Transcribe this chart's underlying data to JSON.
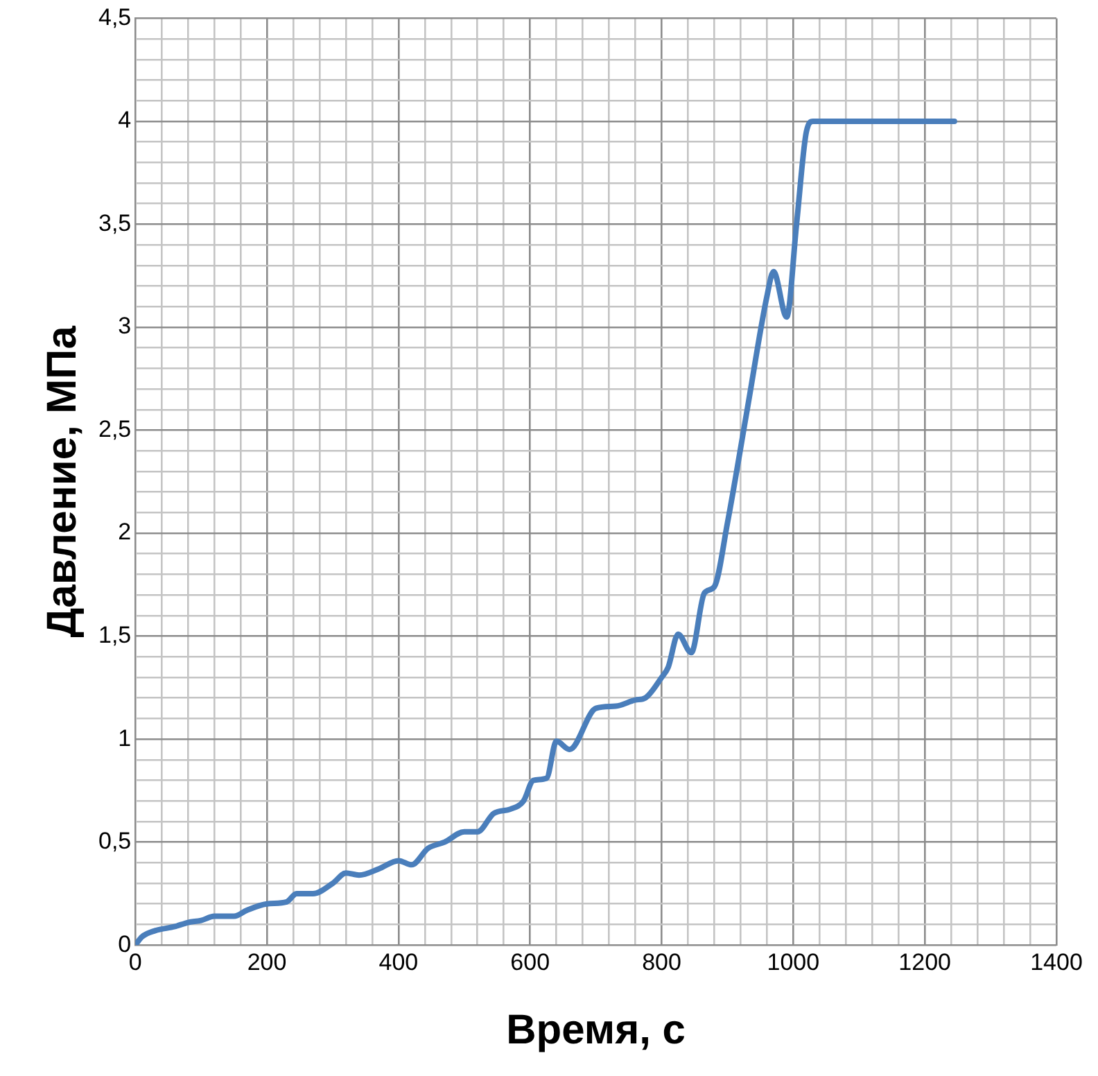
{
  "chart_data": {
    "type": "line",
    "xlabel": "Время, с",
    "ylabel": "Давление, МПа",
    "x": [
      0,
      10,
      30,
      60,
      80,
      100,
      120,
      150,
      170,
      200,
      230,
      245,
      270,
      300,
      320,
      340,
      370,
      400,
      420,
      445,
      470,
      500,
      520,
      545,
      570,
      590,
      605,
      625,
      640,
      660,
      700,
      730,
      760,
      775,
      800,
      810,
      825,
      845,
      865,
      880,
      900,
      930,
      960,
      970,
      990,
      1005,
      1020,
      1030,
      1245
    ],
    "series": [
      {
        "color": "#4a7ebb",
        "values": [
          0,
          0.04,
          0.07,
          0.09,
          0.11,
          0.12,
          0.14,
          0.14,
          0.17,
          0.2,
          0.21,
          0.25,
          0.25,
          0.3,
          0.35,
          0.34,
          0.37,
          0.41,
          0.39,
          0.47,
          0.5,
          0.55,
          0.55,
          0.64,
          0.66,
          0.7,
          0.8,
          0.81,
          0.99,
          0.95,
          1.15,
          1.16,
          1.19,
          1.2,
          1.3,
          1.35,
          1.51,
          1.42,
          1.71,
          1.74,
          2.05,
          2.6,
          3.15,
          3.27,
          3.05,
          3.5,
          3.95,
          4.0,
          4.0
        ]
      }
    ],
    "xlim": [
      0,
      1400
    ],
    "ylim": [
      0,
      4.5
    ],
    "xticks": [
      0,
      {
        "value": 40,
        "label": null
      },
      {
        "value": 80,
        "label": null
      },
      {
        "value": 120,
        "label": null
      },
      {
        "value": 160,
        "label": null
      },
      200,
      {
        "value": 240,
        "label": null
      },
      {
        "value": 280,
        "label": null
      },
      {
        "value": 320,
        "label": null
      },
      {
        "value": 360,
        "label": null
      },
      400,
      {
        "value": 440,
        "label": null
      },
      {
        "value": 480,
        "label": null
      },
      {
        "value": 520,
        "label": null
      },
      {
        "value": 560,
        "label": null
      },
      600,
      {
        "value": 640,
        "label": null
      },
      {
        "value": 680,
        "label": null
      },
      {
        "value": 720,
        "label": null
      },
      {
        "value": 760,
        "label": null
      },
      800,
      {
        "value": 840,
        "label": null
      },
      {
        "value": 880,
        "label": null
      },
      {
        "value": 920,
        "label": null
      },
      {
        "value": 960,
        "label": null
      },
      1000,
      {
        "value": 1040,
        "label": null
      },
      {
        "value": 1080,
        "label": null
      },
      {
        "value": 1120,
        "label": null
      },
      {
        "value": 1160,
        "label": null
      },
      1200,
      {
        "value": 1240,
        "label": null
      },
      {
        "value": 1280,
        "label": null
      },
      {
        "value": 1320,
        "label": null
      },
      {
        "value": 1360,
        "label": null
      },
      1400
    ],
    "yticks": [
      0,
      {
        "value": 0.1,
        "label": null
      },
      {
        "value": 0.2,
        "label": null
      },
      {
        "value": 0.3,
        "label": null
      },
      {
        "value": 0.4,
        "label": null
      },
      {
        "value": 0.5,
        "label": "0,5"
      },
      {
        "value": 0.6,
        "label": null
      },
      {
        "value": 0.7,
        "label": null
      },
      {
        "value": 0.8,
        "label": null
      },
      {
        "value": 0.9,
        "label": null
      },
      1,
      {
        "value": 1.1,
        "label": null
      },
      {
        "value": 1.2,
        "label": null
      },
      {
        "value": 1.3,
        "label": null
      },
      {
        "value": 1.4,
        "label": null
      },
      {
        "value": 1.5,
        "label": "1,5"
      },
      {
        "value": 1.6,
        "label": null
      },
      {
        "value": 1.7,
        "label": null
      },
      {
        "value": 1.8,
        "label": null
      },
      {
        "value": 1.9,
        "label": null
      },
      2,
      {
        "value": 2.1,
        "label": null
      },
      {
        "value": 2.2,
        "label": null
      },
      {
        "value": 2.3,
        "label": null
      },
      {
        "value": 2.4,
        "label": null
      },
      {
        "value": 2.5,
        "label": "2,5"
      },
      {
        "value": 2.6,
        "label": null
      },
      {
        "value": 2.7,
        "label": null
      },
      {
        "value": 2.8,
        "label": null
      },
      {
        "value": 2.9,
        "label": null
      },
      3,
      {
        "value": 3.1,
        "label": null
      },
      {
        "value": 3.2,
        "label": null
      },
      {
        "value": 3.3,
        "label": null
      },
      {
        "value": 3.4,
        "label": null
      },
      {
        "value": 3.5,
        "label": "3,5"
      },
      {
        "value": 3.6,
        "label": null
      },
      {
        "value": 3.7,
        "label": null
      },
      {
        "value": 3.8,
        "label": null
      },
      {
        "value": 3.9,
        "label": null
      },
      4,
      {
        "value": 4.1,
        "label": null
      },
      {
        "value": 4.2,
        "label": null
      },
      {
        "value": 4.3,
        "label": null
      },
      {
        "value": 4.4,
        "label": null
      },
      {
        "value": 4.5,
        "label": "4,5"
      }
    ],
    "grid": true,
    "legend": false,
    "marker": "none",
    "line_style": "solid"
  }
}
